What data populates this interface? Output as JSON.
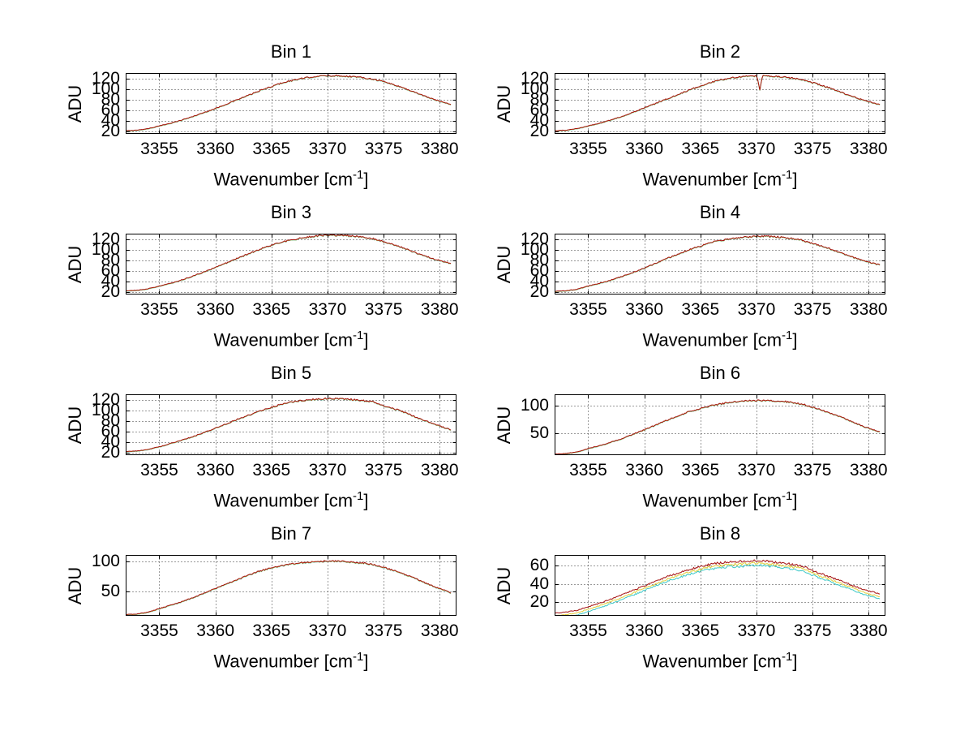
{
  "figure": {
    "background": "#ffffff"
  },
  "ylabel": "ADU",
  "xlabel": {
    "main": "Wavenumber [cm",
    "sup": "-1",
    "end": "]"
  },
  "axis_style": {
    "axis_color": "#000000",
    "grid_color": "#333333",
    "grid_style": "dotted",
    "tick_length": 4,
    "box": true
  },
  "series_colors": {
    "red": "#a51212",
    "yellow": "#e2ce3a",
    "cyan": "#3cc8c8"
  },
  "chart_data": [
    {
      "type": "line",
      "title": "Bin 1",
      "row": 0,
      "col": 0,
      "xlim": [
        3352,
        3381.5
      ],
      "xticks": [
        3355,
        3360,
        3365,
        3370,
        3375,
        3380
      ],
      "ylim": [
        15,
        130
      ],
      "yticks": [
        20,
        40,
        60,
        80,
        100,
        120
      ],
      "x_anchors": [
        3352,
        3353,
        3354,
        3355,
        3356.5,
        3358,
        3360,
        3362,
        3364,
        3366,
        3367.5,
        3369,
        3370,
        3371,
        3372.5,
        3374,
        3375,
        3376.5,
        3378,
        3379.5,
        3381
      ],
      "y_anchors": [
        21,
        22,
        25,
        30,
        38,
        48,
        63,
        80,
        97,
        112,
        119,
        124,
        125,
        125,
        123,
        119,
        114,
        104,
        92,
        80,
        71
      ],
      "series": [
        {
          "name": "cyan",
          "color": "#3cc8c8",
          "offset": -0.8,
          "seed": 113
        },
        {
          "name": "yellow",
          "color": "#e2ce3a",
          "offset": -0.4,
          "seed": 112
        },
        {
          "name": "red",
          "color": "#a51212",
          "offset": 0,
          "seed": 111
        }
      ],
      "noise_mode": "shared",
      "noise_amp": 1.4,
      "spikes": []
    },
    {
      "type": "line",
      "title": "Bin 2",
      "row": 0,
      "col": 1,
      "xlim": [
        3352,
        3381.5
      ],
      "xticks": [
        3355,
        3360,
        3365,
        3370,
        3375,
        3380
      ],
      "ylim": [
        15,
        130
      ],
      "yticks": [
        20,
        40,
        60,
        80,
        100,
        120
      ],
      "x_anchors": [
        3352,
        3353,
        3354,
        3355,
        3356.5,
        3358,
        3360,
        3362,
        3364,
        3366,
        3367.5,
        3369,
        3370,
        3371,
        3372.5,
        3374,
        3375,
        3376.5,
        3378,
        3379.5,
        3381
      ],
      "y_anchors": [
        21,
        22,
        25,
        30,
        38,
        48,
        64,
        81,
        98,
        113,
        120,
        124,
        125,
        125,
        122,
        118,
        112,
        102,
        90,
        79,
        70
      ],
      "series": [
        {
          "name": "cyan",
          "color": "#3cc8c8",
          "offset": -0.8,
          "seed": 123
        },
        {
          "name": "yellow",
          "color": "#e2ce3a",
          "offset": -0.4,
          "seed": 122
        },
        {
          "name": "red",
          "color": "#a51212",
          "offset": 0,
          "seed": 121
        }
      ],
      "noise_mode": "shared",
      "noise_amp": 1.5,
      "spikes": [
        {
          "x": 3370.3,
          "dy": -27,
          "width": 0.25
        }
      ]
    },
    {
      "type": "line",
      "title": "Bin 3",
      "row": 1,
      "col": 0,
      "xlim": [
        3352,
        3381.5
      ],
      "xticks": [
        3355,
        3360,
        3365,
        3370,
        3375,
        3380
      ],
      "ylim": [
        15,
        130
      ],
      "yticks": [
        20,
        40,
        60,
        80,
        100,
        120
      ],
      "x_anchors": [
        3352,
        3353,
        3354,
        3355,
        3356.5,
        3358,
        3360,
        3362,
        3364,
        3366,
        3367.5,
        3369,
        3370,
        3371,
        3372.5,
        3374,
        3375,
        3376.5,
        3378,
        3379.5,
        3381
      ],
      "y_anchors": [
        22,
        23,
        26,
        31,
        39,
        50,
        66,
        84,
        101,
        115,
        121,
        126,
        127,
        127,
        125,
        121,
        115,
        105,
        93,
        82,
        74
      ],
      "series": [
        {
          "name": "cyan",
          "color": "#3cc8c8",
          "offset": -0.8,
          "seed": 133
        },
        {
          "name": "yellow",
          "color": "#e2ce3a",
          "offset": -0.4,
          "seed": 132
        },
        {
          "name": "red",
          "color": "#a51212",
          "offset": 0,
          "seed": 131
        }
      ],
      "noise_mode": "shared",
      "noise_amp": 1.5,
      "spikes": []
    },
    {
      "type": "line",
      "title": "Bin 4",
      "row": 1,
      "col": 1,
      "xlim": [
        3352,
        3381.5
      ],
      "xticks": [
        3355,
        3360,
        3365,
        3370,
        3375,
        3380
      ],
      "ylim": [
        15,
        130
      ],
      "yticks": [
        20,
        40,
        60,
        80,
        100,
        120
      ],
      "x_anchors": [
        3352,
        3353,
        3354,
        3355,
        3356.5,
        3358,
        3360,
        3362,
        3364,
        3366,
        3367.5,
        3369,
        3370,
        3371,
        3372.5,
        3374,
        3375,
        3376.5,
        3378,
        3379.5,
        3381
      ],
      "y_anchors": [
        21,
        22,
        25,
        31,
        39,
        49,
        65,
        83,
        100,
        114,
        120,
        124,
        125,
        125,
        123,
        118,
        112,
        102,
        90,
        79,
        71
      ],
      "series": [
        {
          "name": "cyan",
          "color": "#3cc8c8",
          "offset": -0.8,
          "seed": 143
        },
        {
          "name": "yellow",
          "color": "#e2ce3a",
          "offset": -0.4,
          "seed": 142
        },
        {
          "name": "red",
          "color": "#a51212",
          "offset": 0,
          "seed": 141
        }
      ],
      "noise_mode": "shared",
      "noise_amp": 1.5,
      "spikes": []
    },
    {
      "type": "line",
      "title": "Bin 5",
      "row": 2,
      "col": 0,
      "xlim": [
        3352,
        3381.5
      ],
      "xticks": [
        3355,
        3360,
        3365,
        3370,
        3375,
        3380
      ],
      "ylim": [
        15,
        130
      ],
      "yticks": [
        20,
        40,
        60,
        80,
        100,
        120
      ],
      "x_anchors": [
        3352,
        3353,
        3354,
        3355,
        3356.5,
        3358,
        3360,
        3362,
        3364,
        3366,
        3367.5,
        3369,
        3370,
        3371,
        3372.5,
        3374,
        3375,
        3376.5,
        3378,
        3379.5,
        3381
      ],
      "y_anchors": [
        22,
        23,
        26,
        31,
        40,
        50,
        66,
        83,
        99,
        112,
        118,
        121,
        122,
        122,
        120,
        116,
        109,
        99,
        86,
        74,
        63
      ],
      "series": [
        {
          "name": "cyan",
          "color": "#3cc8c8",
          "offset": -0.8,
          "seed": 153
        },
        {
          "name": "yellow",
          "color": "#e2ce3a",
          "offset": -0.4,
          "seed": 152
        },
        {
          "name": "red",
          "color": "#a51212",
          "offset": 0,
          "seed": 151
        }
      ],
      "noise_mode": "shared",
      "noise_amp": 1.5,
      "spikes": []
    },
    {
      "type": "line",
      "title": "Bin 6",
      "row": 2,
      "col": 1,
      "xlim": [
        3352,
        3381.5
      ],
      "xticks": [
        3355,
        3360,
        3365,
        3370,
        3375,
        3380
      ],
      "ylim": [
        10,
        120
      ],
      "yticks": [
        50,
        100
      ],
      "x_anchors": [
        3352,
        3353,
        3354,
        3355,
        3356.5,
        3358,
        3360,
        3362,
        3364,
        3366,
        3367.5,
        3369,
        3370,
        3371,
        3372.5,
        3374,
        3375,
        3376.5,
        3378,
        3379.5,
        3381
      ],
      "y_anchors": [
        12,
        13,
        16,
        22,
        30,
        40,
        56,
        73,
        89,
        100,
        105,
        108,
        109,
        109,
        107,
        103,
        97,
        87,
        75,
        62,
        52
      ],
      "series": [
        {
          "name": "cyan",
          "color": "#3cc8c8",
          "offset": -0.8,
          "seed": 163
        },
        {
          "name": "yellow",
          "color": "#e2ce3a",
          "offset": -0.4,
          "seed": 162
        },
        {
          "name": "red",
          "color": "#a51212",
          "offset": 0,
          "seed": 161
        }
      ],
      "noise_mode": "shared",
      "noise_amp": 1.4,
      "spikes": []
    },
    {
      "type": "line",
      "title": "Bin 7",
      "row": 3,
      "col": 0,
      "xlim": [
        3352,
        3381.5
      ],
      "xticks": [
        3355,
        3360,
        3365,
        3370,
        3375,
        3380
      ],
      "ylim": [
        10,
        110
      ],
      "yticks": [
        50,
        100
      ],
      "x_anchors": [
        3352,
        3353,
        3354,
        3355,
        3356.5,
        3358,
        3360,
        3362,
        3364,
        3366,
        3367.5,
        3369,
        3370,
        3371,
        3372.5,
        3374,
        3375,
        3376.5,
        3378,
        3379.5,
        3381
      ],
      "y_anchors": [
        12,
        13,
        16,
        22,
        30,
        40,
        55,
        70,
        84,
        93,
        97,
        99,
        100,
        100,
        98,
        95,
        90,
        81,
        70,
        58,
        48
      ],
      "series": [
        {
          "name": "cyan",
          "color": "#3cc8c8",
          "offset": -0.8,
          "seed": 173
        },
        {
          "name": "yellow",
          "color": "#e2ce3a",
          "offset": -0.4,
          "seed": 172
        },
        {
          "name": "red",
          "color": "#a51212",
          "offset": 0,
          "seed": 171
        }
      ],
      "noise_mode": "shared",
      "noise_amp": 1.3,
      "spikes": []
    },
    {
      "type": "line",
      "title": "Bin 8",
      "row": 3,
      "col": 1,
      "xlim": [
        3352,
        3381.5
      ],
      "xticks": [
        3355,
        3360,
        3365,
        3370,
        3375,
        3380
      ],
      "ylim": [
        5,
        72
      ],
      "yticks": [
        20,
        40,
        60
      ],
      "x_anchors": [
        3352,
        3353,
        3354,
        3355,
        3356.5,
        3358,
        3360,
        3362,
        3364,
        3366,
        3367.5,
        3369,
        3370,
        3371,
        3372.5,
        3374,
        3375,
        3376.5,
        3378,
        3379.5,
        3381
      ],
      "y_anchors": [
        8,
        9,
        11,
        15,
        21,
        28,
        38,
        48,
        56,
        62,
        64,
        65,
        66,
        65,
        63,
        60,
        55,
        48,
        41,
        34,
        29
      ],
      "series": [
        {
          "name": "cyan",
          "color": "#3cc8c8",
          "offset": -5.2,
          "seed": 183
        },
        {
          "name": "yellow",
          "color": "#e2ce3a",
          "offset": -2.8,
          "seed": 182
        },
        {
          "name": "red",
          "color": "#a51212",
          "offset": 0,
          "seed": 181
        }
      ],
      "noise_mode": "independent",
      "noise_amp": 1.3,
      "spikes": []
    }
  ]
}
